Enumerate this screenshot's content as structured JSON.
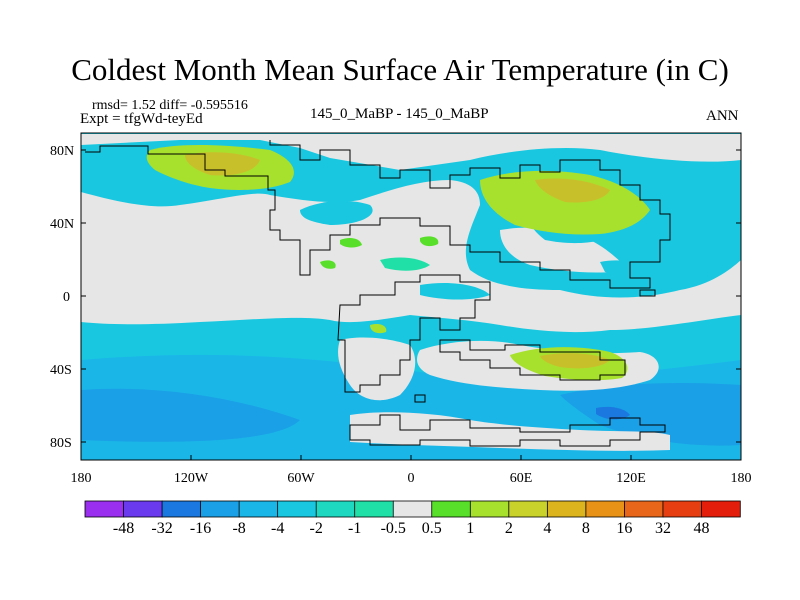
{
  "title": "Coldest Month Mean Surface Air Temperature (in C)",
  "stats": "rmsd= 1.52 diff= -0.595516",
  "expt": "Expt = tfgWd-teyEd",
  "case": "145_0_MaBP - 145_0_MaBP",
  "season": "ANN",
  "map": {
    "lat_labels": [
      "80N",
      "40N",
      "0",
      "40S",
      "80S"
    ],
    "lon_labels": [
      "180",
      "120W",
      "60W",
      "0",
      "60E",
      "120E",
      "180"
    ]
  },
  "colorbar": {
    "labels": [
      "-48",
      "-32",
      "-16",
      "-8",
      "-4",
      "-2",
      "-1",
      "-0.5",
      "0.5",
      "1",
      "2",
      "4",
      "8",
      "16",
      "32",
      "48"
    ],
    "colors": [
      "#9b2ff0",
      "#6a3aef",
      "#1a78e0",
      "#1aa0e6",
      "#1bb6e8",
      "#19c8e0",
      "#1fd8c0",
      "#20e0a8",
      "#e6e6e6",
      "#58df2a",
      "#a8e02e",
      "#c8d22a",
      "#dcb41e",
      "#e89218",
      "#e8661a",
      "#e63e10",
      "#e31e0a"
    ]
  },
  "colors": {
    "neutral_land": "#e6e6e6",
    "ocean_cyan": "#19c8e0",
    "ocean_blue": "#1bb6e8",
    "deep_blue": "#1a9ee8",
    "positive_green": "#a8e02e",
    "positive_yellow": "#c8c02a"
  }
}
